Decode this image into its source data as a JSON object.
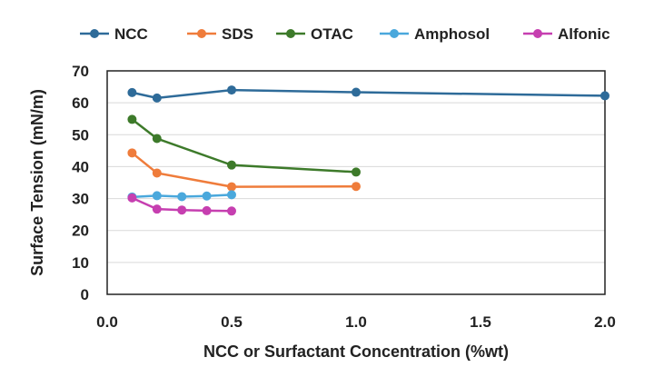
{
  "chart_data": {
    "type": "line",
    "title": "",
    "xlabel": "NCC or Surfactant Concentration (%wt)",
    "ylabel": "Surface Tension (mN/m)",
    "xlim": [
      0,
      2.0
    ],
    "ylim": [
      0,
      70
    ],
    "x_ticks": [
      0.0,
      0.5,
      1.0,
      1.5,
      2.0
    ],
    "x_tick_labels": [
      "0.0",
      "0.5",
      "1.0",
      "1.5",
      "2.0"
    ],
    "y_ticks": [
      0,
      10,
      20,
      30,
      40,
      50,
      60,
      70
    ],
    "y_tick_labels": [
      "0",
      "10",
      "20",
      "30",
      "40",
      "50",
      "60",
      "70"
    ],
    "grid": "horizontal",
    "legend_position": "top",
    "series": [
      {
        "name": "NCC",
        "color": "#2e6b99",
        "x": [
          0.1,
          0.2,
          0.5,
          1.0,
          2.0
        ],
        "y": [
          63.2,
          61.5,
          64.0,
          63.3,
          62.2
        ]
      },
      {
        "name": "SDS",
        "color": "#ef7c3b",
        "x": [
          0.1,
          0.2,
          0.5,
          1.0
        ],
        "y": [
          44.3,
          38.0,
          33.7,
          33.8
        ]
      },
      {
        "name": "OTAC",
        "color": "#3d7a2a",
        "x": [
          0.1,
          0.2,
          0.5,
          1.0
        ],
        "y": [
          54.8,
          48.8,
          40.5,
          38.3
        ]
      },
      {
        "name": "Amphosol",
        "color": "#4aa8dc",
        "x": [
          0.1,
          0.2,
          0.3,
          0.4,
          0.5
        ],
        "y": [
          30.5,
          30.9,
          30.6,
          30.8,
          31.2
        ]
      },
      {
        "name": "Alfonic",
        "color": "#c63fb0",
        "x": [
          0.1,
          0.2,
          0.3,
          0.4,
          0.5
        ],
        "y": [
          30.2,
          26.7,
          26.4,
          26.2,
          26.1
        ]
      }
    ]
  }
}
